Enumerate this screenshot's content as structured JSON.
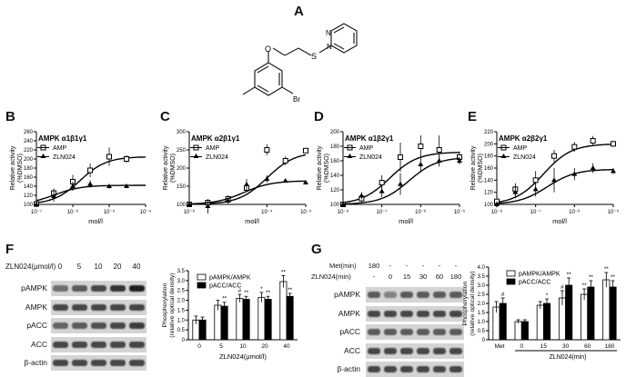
{
  "panel_letters": {
    "A": "A",
    "B": "B",
    "C": "C",
    "D": "D",
    "E": "E",
    "F": "F",
    "G": "G"
  },
  "structure": {
    "substituent_br": "Br",
    "atom_o": "O",
    "atom_s": "S",
    "atom_n1": "N",
    "atom_n2": "N"
  },
  "dose_panels": [
    {
      "letter": "B",
      "title": "AMPK α1β1γ1",
      "ylabel": "Relative activity\n(%DMSO)",
      "xlabel": "mol/l",
      "legend": [
        "AMP",
        "ZLN024"
      ],
      "x_ticks": [
        "10⁻⁷",
        "10⁻⁶",
        "10⁻⁵",
        "10⁻⁴"
      ],
      "y_ticks": [
        100,
        120,
        140,
        160,
        180,
        200,
        220,
        240,
        260
      ]
    },
    {
      "letter": "C",
      "title": "AMPK α2β1γ1",
      "ylabel": "Relative activity\n(%DMSO)",
      "xlabel": "mol/l",
      "legend": [
        "AMP",
        "ZLN024"
      ],
      "x_ticks": [
        "10⁻⁶",
        "10⁻⁴",
        "10⁻³"
      ],
      "y_ticks": [
        100,
        150,
        200,
        250,
        300
      ]
    },
    {
      "letter": "D",
      "title": "AMPK α1β2γ1",
      "ylabel": "Relative activity\n(%DMSO)",
      "xlabel": "mol/l",
      "legend": [
        "AMP",
        "ZLN024"
      ],
      "x_ticks": [
        "10⁻⁸",
        "10⁻⁷",
        "10⁻⁶",
        "10⁻⁵"
      ],
      "y_ticks": [
        100,
        120,
        140,
        160,
        180,
        200
      ]
    },
    {
      "letter": "E",
      "title": "AMPK α2β2γ1",
      "ylabel": "Relative activity\n(%DMSO)",
      "xlabel": "mol/l",
      "legend": [
        "AMP",
        "ZLN024"
      ],
      "x_ticks": [
        "10⁻⁸",
        "10⁻⁷",
        "10⁻⁶",
        "10⁻⁵"
      ],
      "y_ticks": [
        100,
        120,
        140,
        160,
        180,
        200,
        220
      ]
    }
  ],
  "blot_F": {
    "dose_label": "ZLN024(μmol/l)",
    "lanes": [
      "0",
      "5",
      "10",
      "20",
      "40"
    ],
    "rows": [
      "pAMPK",
      "AMPK",
      "pACC",
      "ACC",
      "β-actin"
    ]
  },
  "blot_G": {
    "met_label": "Met(min)",
    "met_lanes": [
      "180",
      "-",
      "-",
      "-",
      "-",
      "-"
    ],
    "zln_label": "ZLN024(min)",
    "zln_lanes": [
      "-",
      "0",
      "15",
      "30",
      "60",
      "180"
    ],
    "rows": [
      "pAMPK",
      "AMPK",
      "pACC",
      "ACC",
      "β-actin"
    ]
  },
  "chart_data": [
    {
      "type": "bar",
      "panel": "F",
      "categories": [
        "0",
        "5",
        "10",
        "20",
        "40"
      ],
      "xlabel": "ZLN024(μmol/l)",
      "ylabel": "Phosphorylation\n(relative optical density)",
      "ylim": [
        0,
        3.5
      ],
      "y_ticks": [
        "0",
        "0.5",
        "1.0",
        "1.5",
        "2.0",
        "2.5",
        "3.0",
        "3.5"
      ],
      "series": [
        {
          "name": "pAMPK/AMPK",
          "color": "#ffffff",
          "values": [
            1.0,
            1.75,
            2.1,
            2.15,
            2.95
          ],
          "errors": [
            0.2,
            0.25,
            0.2,
            0.25,
            0.3
          ]
        },
        {
          "name": "pACC/ACC",
          "color": "#000000",
          "values": [
            1.0,
            1.7,
            2.05,
            2.05,
            2.2
          ],
          "errors": [
            0.15,
            0.2,
            0.15,
            0.15,
            0.15
          ]
        }
      ],
      "annotations": [
        {
          "category": "5",
          "series": "pACC/ACC",
          "text": "**"
        },
        {
          "category": "10",
          "series": "pAMPK/AMPK",
          "text": "#"
        },
        {
          "category": "10",
          "series": "pACC/ACC",
          "text": "**"
        },
        {
          "category": "20",
          "series": "pAMPK/AMPK",
          "text": "*"
        },
        {
          "category": "20",
          "series": "pACC/ACC",
          "text": "**"
        },
        {
          "category": "40",
          "series": "pAMPK/AMPK",
          "text": "**"
        },
        {
          "category": "40",
          "series": "pACC/ACC",
          "text": "**"
        }
      ]
    },
    {
      "type": "bar",
      "panel": "G",
      "categories": [
        "Met",
        "0",
        "15",
        "30",
        "60",
        "180"
      ],
      "xlabel": "ZLN024(min)",
      "ylabel": "Phosphorylation\n(relative optical density)",
      "ylim": [
        0,
        4.0
      ],
      "y_ticks": [
        "0",
        "0.5",
        "1.0",
        "1.5",
        "2.0",
        "2.5",
        "3.0",
        "3.5",
        "4.0"
      ],
      "series": [
        {
          "name": "pAMPK/AMPK",
          "color": "#ffffff",
          "values": [
            1.8,
            1.0,
            1.9,
            2.3,
            2.5,
            3.3
          ],
          "errors": [
            0.3,
            0.1,
            0.2,
            0.4,
            0.3,
            0.4
          ]
        },
        {
          "name": "pACC/ACC",
          "color": "#000000",
          "values": [
            2.0,
            1.0,
            2.0,
            3.0,
            2.9,
            2.9
          ],
          "errors": [
            0.3,
            0.1,
            0.25,
            0.4,
            0.35,
            0.35
          ]
        }
      ],
      "annotations": [
        {
          "category": "Met",
          "series": "pACC/ACC",
          "text": "#"
        },
        {
          "category": "15",
          "series": "pACC/ACC",
          "text": "*"
        },
        {
          "category": "30",
          "series": "pAMPK/AMPK",
          "text": "#"
        },
        {
          "category": "30",
          "series": "pACC/ACC",
          "text": "**"
        },
        {
          "category": "60",
          "series": "pAMPK/AMPK",
          "text": "**"
        },
        {
          "category": "60",
          "series": "pACC/ACC",
          "text": "**"
        },
        {
          "category": "180",
          "series": "pAMPK/AMPK",
          "text": "**"
        },
        {
          "category": "180",
          "series": "pACC/ACC",
          "text": "**"
        }
      ]
    },
    {
      "type": "scatter",
      "panel": "B",
      "xscale": "log",
      "series": [
        {
          "name": "AMP",
          "x": [
            1e-07,
            3e-07,
            1e-06,
            3e-06,
            1e-05,
            3e-05
          ],
          "y": [
            101,
            125,
            150,
            175,
            205,
            200
          ],
          "errors": [
            3,
            10,
            15,
            15,
            20,
            8
          ],
          "fit": {
            "bottom": 100,
            "top": 205,
            "logec50": -5.8
          }
        },
        {
          "name": "ZLN024",
          "x": [
            1e-07,
            3e-07,
            1e-06,
            3e-06,
            1e-05,
            3e-05
          ],
          "y": [
            100,
            118,
            140,
            145,
            140,
            140
          ],
          "errors": [
            3,
            12,
            10,
            8,
            5,
            3
          ],
          "fit": {
            "bottom": 100,
            "top": 142,
            "logec50": -6.5
          }
        }
      ]
    },
    {
      "type": "scatter",
      "panel": "C",
      "xscale": "log",
      "series": [
        {
          "name": "AMP",
          "x": [
            1e-06,
            3e-06,
            1e-05,
            3e-05,
            0.0001,
            0.0003,
            0.001
          ],
          "y": [
            100,
            105,
            115,
            145,
            250,
            220,
            248
          ],
          "errors": [
            3,
            5,
            10,
            10,
            15,
            12,
            5
          ],
          "fit": {
            "bottom": 100,
            "top": 245,
            "logec50": -4.0
          }
        },
        {
          "name": "ZLN024",
          "x": [
            1e-06,
            3e-06,
            1e-05,
            3e-05,
            0.0001,
            0.0003,
            0.001
          ],
          "y": [
            100,
            95,
            110,
            155,
            170,
            165,
            160
          ],
          "errors": [
            3,
            20,
            8,
            15,
            10,
            5,
            3
          ],
          "fit": {
            "bottom": 100,
            "top": 165,
            "logec50": -4.6
          }
        }
      ]
    },
    {
      "type": "scatter",
      "panel": "D",
      "xscale": "log",
      "series": [
        {
          "name": "AMP",
          "x": [
            1e-08,
            3e-08,
            1e-07,
            3e-07,
            1e-06,
            3e-06,
            1e-05
          ],
          "y": [
            100,
            108,
            130,
            165,
            180,
            175,
            165
          ],
          "errors": [
            3,
            5,
            10,
            20,
            15,
            20,
            8
          ],
          "fit": {
            "bottom": 100,
            "top": 172,
            "logec50": -6.8
          }
        },
        {
          "name": "ZLN024",
          "x": [
            1e-08,
            3e-08,
            1e-07,
            3e-07,
            1e-06,
            3e-06,
            1e-05
          ],
          "y": [
            100,
            112,
            118,
            128,
            155,
            160,
            160
          ],
          "errors": [
            3,
            5,
            8,
            15,
            10,
            8,
            5
          ],
          "fit": {
            "bottom": 100,
            "top": 165,
            "logec50": -6.3
          }
        }
      ]
    },
    {
      "type": "scatter",
      "panel": "E",
      "xscale": "log",
      "series": [
        {
          "name": "AMP",
          "x": [
            1e-08,
            3e-08,
            1e-07,
            3e-07,
            1e-06,
            3e-06,
            1e-05
          ],
          "y": [
            105,
            125,
            140,
            180,
            195,
            205,
            200
          ],
          "errors": [
            5,
            10,
            15,
            10,
            8,
            8,
            5
          ],
          "fit": {
            "bottom": 100,
            "top": 200,
            "logec50": -6.8
          }
        },
        {
          "name": "ZLN024",
          "x": [
            1e-08,
            3e-08,
            1e-07,
            3e-07,
            1e-06,
            3e-06,
            1e-05
          ],
          "y": [
            100,
            120,
            125,
            140,
            150,
            160,
            155
          ],
          "errors": [
            5,
            10,
            12,
            20,
            10,
            8,
            5
          ],
          "fit": {
            "bottom": 100,
            "top": 158,
            "logec50": -6.7
          }
        }
      ]
    }
  ]
}
